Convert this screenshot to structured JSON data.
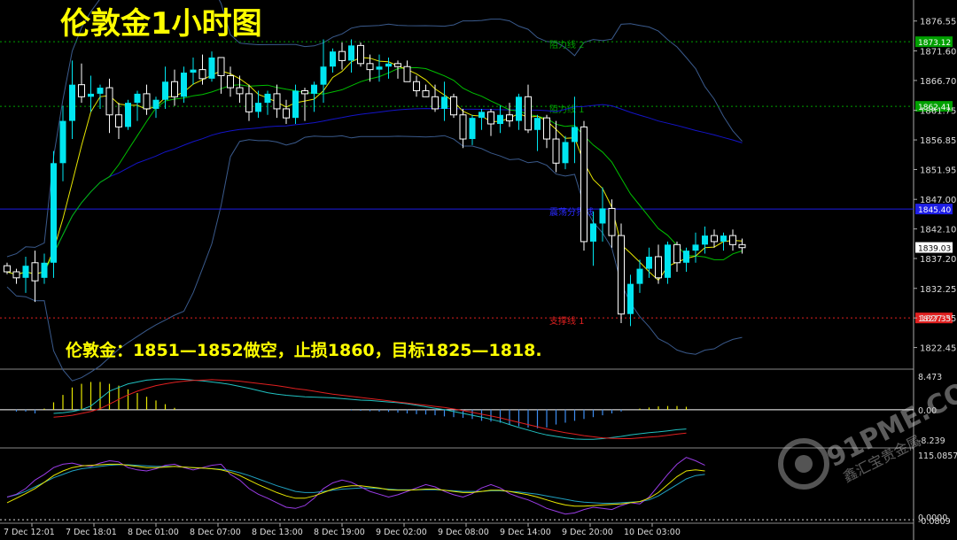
{
  "title": "伦敦金1小时图",
  "annotation": "伦敦金：1851—1852做空，止损1860，目标1825—1818.",
  "watermark": {
    "text": "91PME.COM",
    "sub": "鑫汇宝贵金属"
  },
  "chart_data": [
    {
      "type": "candlestick",
      "panel": "price",
      "ylim": [
        1819.6,
        1879.3
      ],
      "yticks": [
        1876.55,
        1871.6,
        1866.7,
        1861.75,
        1856.85,
        1851.95,
        1847.0,
        1842.1,
        1837.2,
        1832.25,
        1827.35,
        1822.45
      ],
      "xlabels": [
        "7 Dec 12:01",
        "7 Dec 18:01",
        "8 Dec 01:00",
        "8 Dec 07:00",
        "8 Dec 13:00",
        "8 Dec 19:00",
        "9 Dec 02:00",
        "9 Dec 08:00",
        "9 Dec 14:00",
        "9 Dec 20:00",
        "10 Dec 03:00"
      ],
      "levels": [
        {
          "name": "阻力线 2",
          "price": 1873.12,
          "label": "1873.12",
          "color": "#00a000",
          "style": "dotted"
        },
        {
          "name": "阻力线 1",
          "price": 1862.41,
          "label": "1862.41",
          "color": "#00a000",
          "style": "dotted"
        },
        {
          "name": "震荡分界线",
          "price": 1845.4,
          "label": "1845.40",
          "color": "#1e1ee6",
          "style": "solid"
        },
        {
          "name": "支撑线 1",
          "price": 1827.35,
          "label": "1827.35",
          "color": "#e02020",
          "style": "dotted"
        }
      ],
      "current_price": "1839.03",
      "colors": {
        "up": "#00e5f0",
        "down": "#000000",
        "downBorder": "#ffffff",
        "ma_fast": "#e6e600",
        "ma_mid": "#00c000",
        "ma_slow": "#1414c8",
        "boll": "#3a5a8c"
      }
    },
    {
      "type": "macd",
      "panel": "macd",
      "ylim": [
        -9.6,
        10.0
      ],
      "tick_labels": [
        "8.473",
        "0.00",
        "-8.239"
      ],
      "colors": {
        "pos": "#e6e600",
        "neg": "#3c8cf0",
        "dif": "#20c0c0",
        "dea": "#e02020"
      }
    },
    {
      "type": "line",
      "panel": "oscillator",
      "ylim": [
        -3,
        122
      ],
      "tick_labels": [
        "115.0857",
        "0.0000",
        "-0.0809"
      ],
      "colors": {
        "purple": "#9a3ce6",
        "yellow": "#e6e600",
        "cyan": "#20a0c0"
      }
    }
  ]
}
